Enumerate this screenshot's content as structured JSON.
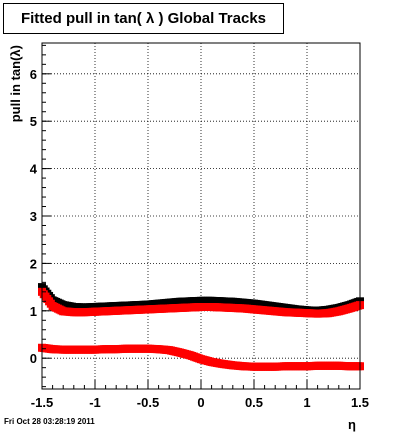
{
  "chart_data": {
    "type": "scatter",
    "title": "Fitted pull in tan( λ )  Global Tracks",
    "xlabel": "η",
    "ylabel": "pull in tan(λ)",
    "xlim": [
      -1.5,
      1.5
    ],
    "ylim": [
      -0.65,
      6.65
    ],
    "xticks": [
      -1.5,
      -1,
      -0.5,
      0,
      0.5,
      1,
      1.5
    ],
    "xtick_labels": [
      "-1.5",
      "-1",
      "-0.5",
      "0",
      "0.5",
      "1",
      "1.5"
    ],
    "yticks": [
      0,
      1,
      2,
      3,
      4,
      5,
      6
    ],
    "ytick_labels": [
      "0",
      "1",
      "2",
      "3",
      "4",
      "5",
      "6"
    ],
    "grid": true,
    "x": [
      -1.5,
      -1.4,
      -1.3,
      -1.2,
      -1.1,
      -1.0,
      -0.9,
      -0.8,
      -0.7,
      -0.6,
      -0.5,
      -0.4,
      -0.3,
      -0.2,
      -0.1,
      0.0,
      0.1,
      0.2,
      0.3,
      0.4,
      0.5,
      0.6,
      0.7,
      0.8,
      0.9,
      1.0,
      1.1,
      1.2,
      1.3,
      1.4,
      1.5
    ],
    "series": [
      {
        "color": "#000000",
        "values": [
          1.5,
          1.22,
          1.12,
          1.08,
          1.07,
          1.08,
          1.09,
          1.1,
          1.11,
          1.12,
          1.13,
          1.15,
          1.17,
          1.19,
          1.2,
          1.21,
          1.21,
          1.2,
          1.19,
          1.17,
          1.15,
          1.12,
          1.09,
          1.06,
          1.03,
          1.01,
          1.0,
          1.02,
          1.06,
          1.12,
          1.2
        ]
      },
      {
        "color": "#ff0000",
        "values": [
          1.4,
          1.1,
          0.99,
          0.97,
          0.97,
          0.98,
          0.99,
          1.0,
          1.01,
          1.02,
          1.03,
          1.04,
          1.05,
          1.06,
          1.07,
          1.08,
          1.08,
          1.07,
          1.06,
          1.05,
          1.03,
          1.01,
          0.99,
          0.97,
          0.96,
          0.95,
          0.94,
          0.95,
          0.99,
          1.05,
          1.12
        ]
      },
      {
        "color": "#ff0000",
        "values": [
          0.22,
          0.19,
          0.18,
          0.18,
          0.18,
          0.18,
          0.19,
          0.19,
          0.2,
          0.2,
          0.2,
          0.19,
          0.17,
          0.12,
          0.06,
          -0.02,
          -0.08,
          -0.12,
          -0.15,
          -0.17,
          -0.18,
          -0.18,
          -0.18,
          -0.17,
          -0.17,
          -0.17,
          -0.16,
          -0.16,
          -0.16,
          -0.17,
          -0.17
        ]
      }
    ]
  },
  "footer": {
    "date_stamp": "Fri Oct 28 03:28:19 2011"
  }
}
